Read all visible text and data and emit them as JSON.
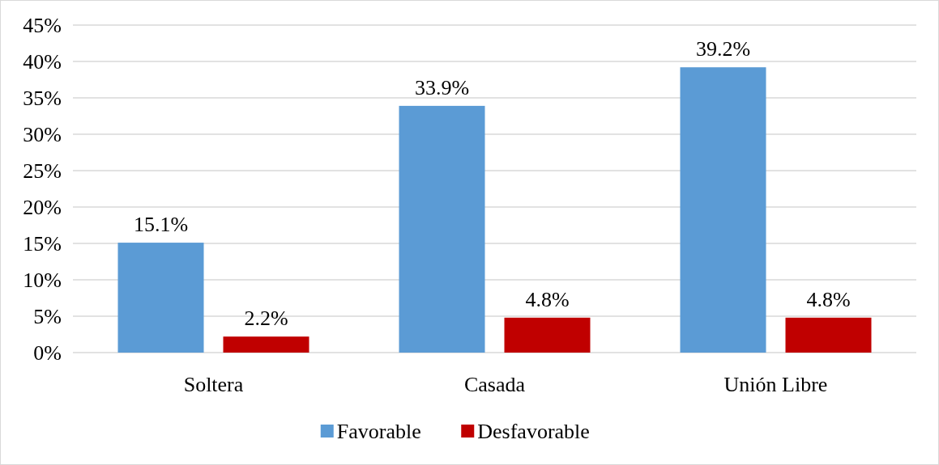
{
  "chart_data": {
    "type": "bar",
    "categories": [
      "Soltera",
      "Casada",
      "Unión Libre"
    ],
    "series": [
      {
        "name": "Favorable",
        "color": "#5b9bd5",
        "values": [
          15.1,
          33.9,
          39.2
        ],
        "value_labels": [
          "15.1%",
          "33.9%",
          "39.2%"
        ]
      },
      {
        "name": "Desfavorable",
        "color": "#c00000",
        "values": [
          2.2,
          4.8,
          4.8
        ],
        "value_labels": [
          "2.2%",
          "4.8%",
          "4.8%"
        ]
      }
    ],
    "ylim": [
      0,
      45
    ],
    "yticks": [
      {
        "value": 0,
        "label": "0%"
      },
      {
        "value": 5,
        "label": "5%"
      },
      {
        "value": 10,
        "label": "10%"
      },
      {
        "value": 15,
        "label": "15%"
      },
      {
        "value": 20,
        "label": "20%"
      },
      {
        "value": 25,
        "label": "25%"
      },
      {
        "value": 30,
        "label": "30%"
      },
      {
        "value": 35,
        "label": "35%"
      },
      {
        "value": 40,
        "label": "40%"
      },
      {
        "value": 45,
        "label": "45%"
      }
    ],
    "grid": "y",
    "legend": "bottom"
  }
}
